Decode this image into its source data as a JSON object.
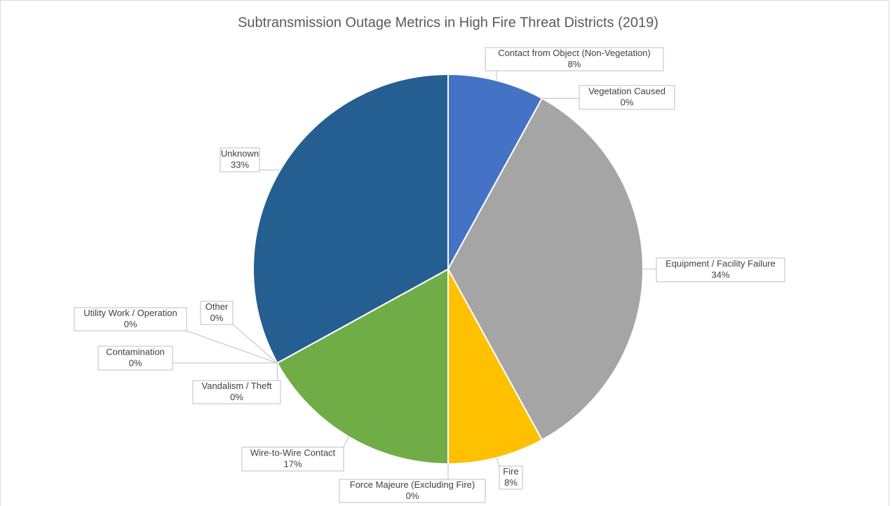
{
  "chart_data": {
    "type": "pie",
    "title": "Subtransmission Outage Metrics in High Fire Threat Districts (2019)",
    "categories": [
      "Contact from Object (Non-Vegetation)",
      "Vegetation Caused",
      "Equipment / Facility Failure",
      "Fire",
      "Force Majeure (Excluding Fire)",
      "Wire-to-Wire Contact",
      "Vandalism / Theft",
      "Contamination",
      "Utility Work / Operation",
      "Other",
      "Unknown"
    ],
    "values": [
      8,
      0,
      34,
      8,
      0,
      17,
      0,
      0,
      0,
      0,
      33
    ],
    "value_labels": [
      "8%",
      "0%",
      "34%",
      "8%",
      "0%",
      "17%",
      "0%",
      "0%",
      "0%",
      "0%",
      "33%"
    ],
    "colors": [
      "#4472c4",
      "#ed7d31",
      "#a5a5a5",
      "#ffc000",
      "#5b9bd5",
      "#70ad47",
      "#264478",
      "#9e480e",
      "#636363",
      "#997300",
      "#255e91"
    ]
  }
}
